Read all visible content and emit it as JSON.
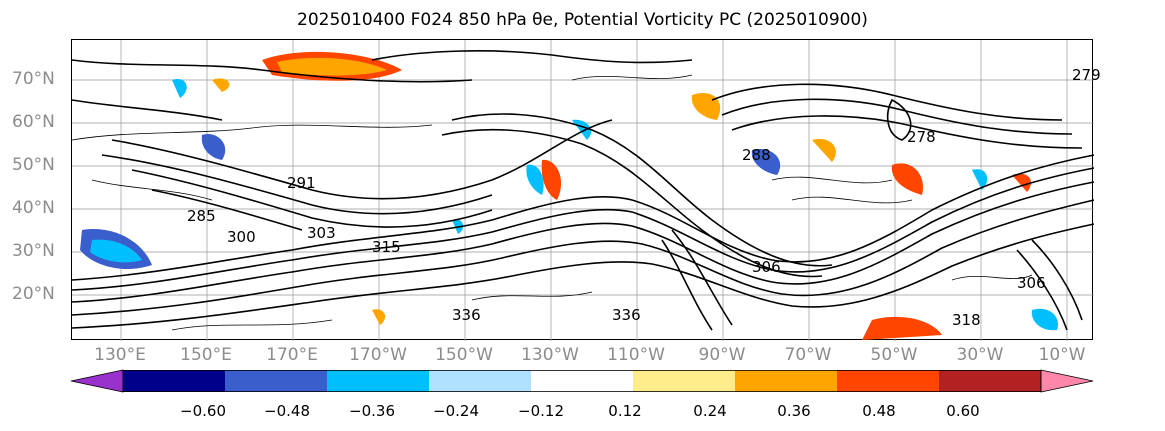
{
  "title": "2025010400 F024 850 hPa θe, Potential Vorticity PC (2025010900)",
  "lat_labels": [
    "70°N",
    "60°N",
    "50°N",
    "40°N",
    "30°N",
    "20°N"
  ],
  "lon_labels": [
    "130°E",
    "150°E",
    "170°E",
    "170°W",
    "150°W",
    "130°W",
    "110°W",
    "90°W",
    "70°W",
    "50°W",
    "30°W",
    "10°W"
  ],
  "contour_labels": [
    "285",
    "291",
    "300",
    "303",
    "315",
    "336",
    "336",
    "318",
    "306",
    "279",
    "288",
    "306",
    "278"
  ],
  "colorbar": {
    "ticks": [
      "−0.60",
      "−0.48",
      "−0.36",
      "−0.24",
      "−0.12",
      "0.12",
      "0.24",
      "0.36",
      "0.48",
      "0.60"
    ],
    "colors": [
      "#9932CC",
      "#00008B",
      "#3A5FCD",
      "#00BFFF",
      "#B0E2FF",
      "#FFFFFF",
      "#FFEC8B",
      "#FFA500",
      "#FF4500",
      "#B22222",
      "#FF88AA"
    ]
  }
}
